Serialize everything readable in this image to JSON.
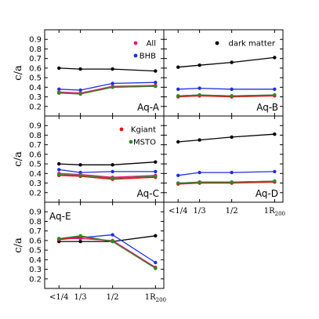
{
  "chart_data": {
    "type": "line",
    "ylabel": "c/a",
    "ylim": [
      0.1,
      1.0
    ],
    "yticks": [
      "0.2",
      "0.3",
      "0.4",
      "0.5",
      "0.6",
      "0.7",
      "0.8",
      "0.9"
    ],
    "x": [
      "<1/4",
      "1/3",
      "1/2",
      "1R200"
    ],
    "xtick_labels": [
      "<1/4",
      "1/3",
      "1/2",
      "1R"
    ],
    "xtick_subscript": "200",
    "colors": {
      "dark matter": "#000000",
      "All": "#e8177a",
      "BHB": "#1f2ee0",
      "Kgiant": "#e01010",
      "MSTO": "#2a8a2a"
    },
    "legends": [
      {
        "panel": "Aq-A",
        "entries": [
          "All",
          "BHB"
        ]
      },
      {
        "panel": "Aq-B",
        "entries": [
          "dark matter"
        ]
      },
      {
        "panel": "Aq-C",
        "entries": [
          "Kgiant",
          "MSTO"
        ]
      }
    ],
    "panels": [
      {
        "label": "Aq-A",
        "series": [
          {
            "name": "dark matter",
            "values": [
              0.6,
              0.59,
              0.59,
              0.57
            ]
          },
          {
            "name": "BHB",
            "values": [
              0.38,
              0.37,
              0.44,
              0.45
            ]
          },
          {
            "name": "All",
            "values": [
              0.35,
              0.34,
              0.41,
              0.42
            ]
          },
          {
            "name": "Kgiant",
            "values": [
              0.34,
              0.33,
              0.4,
              0.41
            ]
          },
          {
            "name": "MSTO",
            "values": [
              0.34,
              0.33,
              0.4,
              0.41
            ]
          }
        ]
      },
      {
        "label": "Aq-B",
        "series": [
          {
            "name": "dark matter",
            "values": [
              0.61,
              0.63,
              0.66,
              0.71
            ]
          },
          {
            "name": "BHB",
            "values": [
              0.38,
              0.39,
              0.38,
              0.38
            ]
          },
          {
            "name": "All",
            "values": [
              0.31,
              0.32,
              0.31,
              0.32
            ]
          },
          {
            "name": "Kgiant",
            "values": [
              0.3,
              0.31,
              0.3,
              0.31
            ]
          },
          {
            "name": "MSTO",
            "values": [
              0.31,
              0.32,
              0.31,
              0.32
            ]
          }
        ]
      },
      {
        "label": "Aq-C",
        "series": [
          {
            "name": "dark matter",
            "values": [
              0.5,
              0.49,
              0.49,
              0.52
            ]
          },
          {
            "name": "BHB",
            "values": [
              0.44,
              0.41,
              0.42,
              0.42
            ]
          },
          {
            "name": "All",
            "values": [
              0.4,
              0.39,
              0.36,
              0.38
            ]
          },
          {
            "name": "Kgiant",
            "values": [
              0.38,
              0.37,
              0.34,
              0.36
            ]
          },
          {
            "name": "MSTO",
            "values": [
              0.39,
              0.38,
              0.35,
              0.37
            ]
          }
        ]
      },
      {
        "label": "Aq-D",
        "series": [
          {
            "name": "dark matter",
            "values": [
              0.73,
              0.75,
              0.78,
              0.81
            ]
          },
          {
            "name": "BHB",
            "values": [
              0.38,
              0.41,
              0.41,
              0.42
            ]
          },
          {
            "name": "All",
            "values": [
              0.3,
              0.31,
              0.31,
              0.32
            ]
          },
          {
            "name": "Kgiant",
            "values": [
              0.29,
              0.3,
              0.3,
              0.31
            ]
          },
          {
            "name": "MSTO",
            "values": [
              0.3,
              0.31,
              0.31,
              0.32
            ]
          }
        ]
      },
      {
        "label": "Aq-E",
        "series": [
          {
            "name": "dark matter",
            "values": [
              0.59,
              0.59,
              0.59,
              0.65
            ]
          },
          {
            "name": "BHB",
            "values": [
              0.61,
              0.63,
              0.66,
              0.37
            ]
          },
          {
            "name": "All",
            "values": [
              0.62,
              0.62,
              0.6,
              0.32
            ]
          },
          {
            "name": "Kgiant",
            "values": [
              0.61,
              0.64,
              0.59,
              0.31
            ]
          },
          {
            "name": "MSTO",
            "values": [
              0.62,
              0.65,
              0.59,
              0.31
            ]
          }
        ]
      }
    ]
  }
}
